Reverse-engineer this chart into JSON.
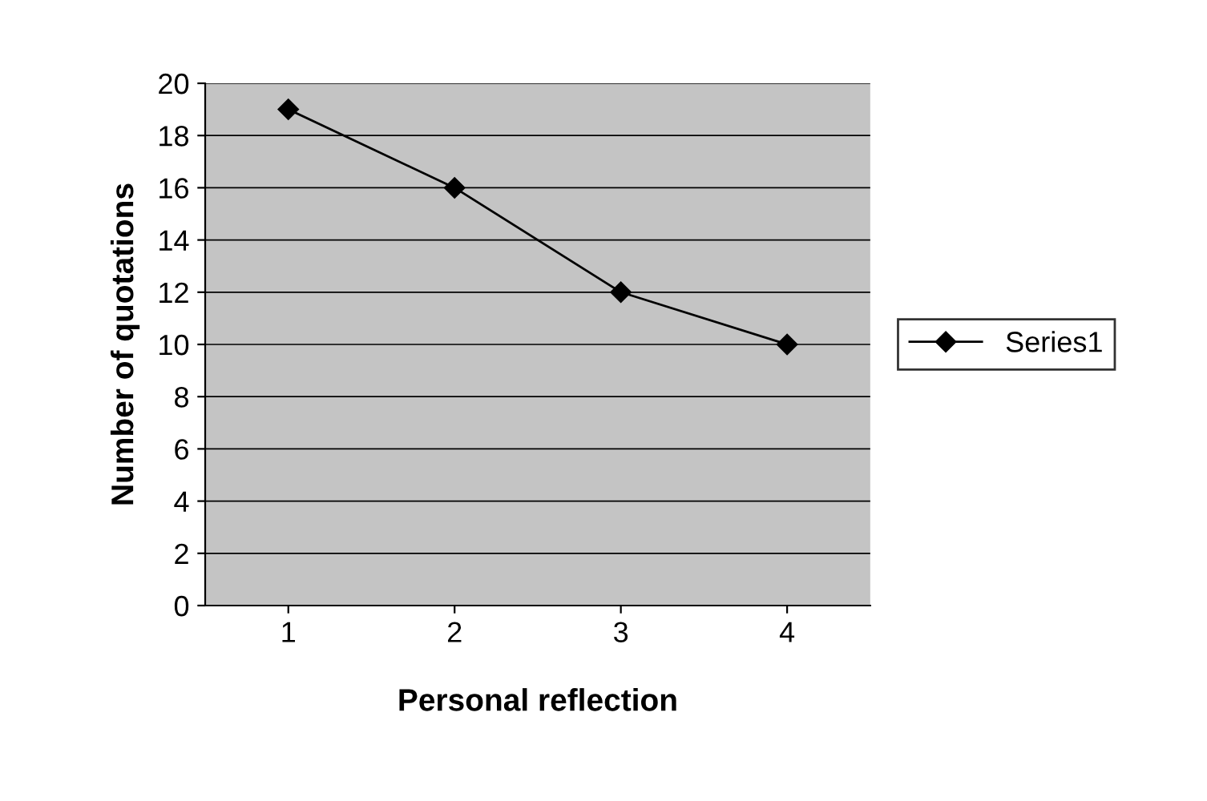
{
  "chart_data": {
    "type": "line",
    "xlabel": "Personal reflection",
    "ylabel": "Number of quotations",
    "categories": [
      "1",
      "2",
      "3",
      "4"
    ],
    "series": [
      {
        "name": "Series1",
        "color": "#000000",
        "values": [
          19,
          16,
          12,
          10
        ]
      }
    ],
    "ylim": [
      0,
      20
    ],
    "yticks": [
      0,
      2,
      4,
      6,
      8,
      10,
      12,
      14,
      16,
      18,
      20
    ],
    "grid": "y",
    "legend": "right",
    "marker": "diamond",
    "line_style": "solid"
  }
}
